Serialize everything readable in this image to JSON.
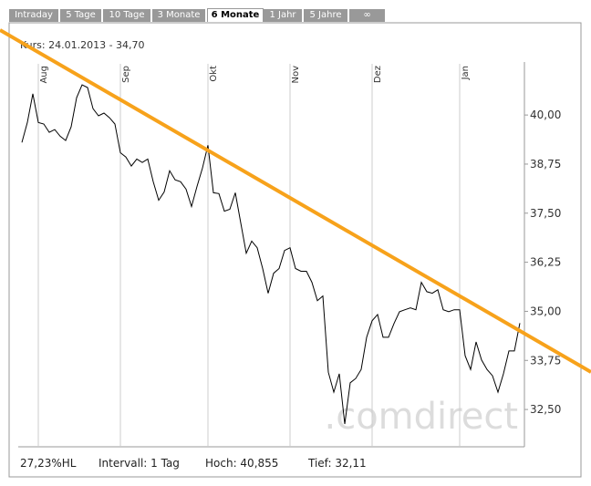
{
  "tabs": [
    "Intraday",
    "5 Tage",
    "10 Tage",
    "3 Monate",
    "6 Monate",
    "1 Jahr",
    "5 Jahre",
    "∞"
  ],
  "active_tab": 4,
  "chart_data": {
    "type": "line",
    "subtitle": "Kurs: 24.01.2013 - 34,70",
    "watermark": ".comdirect",
    "categories": [
      null,
      null,
      null,
      "Aug",
      null,
      null,
      null,
      null,
      null,
      null,
      null,
      null,
      null,
      null,
      null,
      null,
      null,
      null,
      "Sep",
      null,
      null,
      null,
      null,
      null,
      null,
      null,
      null,
      null,
      null,
      null,
      null,
      null,
      null,
      null,
      "Okt",
      null,
      null,
      null,
      null,
      null,
      null,
      null,
      null,
      null,
      null,
      null,
      null,
      null,
      null,
      "Nov",
      null,
      null,
      null,
      null,
      null,
      null,
      null,
      null,
      null,
      null,
      null,
      null,
      null,
      null,
      "Dez",
      null,
      null,
      null,
      null,
      null,
      null,
      null,
      null,
      null,
      null,
      null,
      null,
      null,
      null,
      null,
      "Jan",
      null,
      null,
      null,
      null,
      null,
      null,
      null,
      null,
      null,
      null,
      null
    ],
    "series": [
      {
        "name": "Kurs",
        "color": "#000000",
        "values": [
          39.3,
          39.81,
          40.54,
          39.81,
          39.77,
          39.56,
          39.63,
          39.46,
          39.35,
          39.7,
          40.44,
          40.77,
          40.7,
          40.16,
          39.98,
          40.05,
          39.93,
          39.77,
          39.04,
          38.93,
          38.7,
          38.88,
          38.79,
          38.88,
          38.3,
          37.83,
          38.04,
          38.58,
          38.35,
          38.3,
          38.11,
          37.67,
          38.18,
          38.65,
          39.23,
          38.02,
          38.0,
          37.55,
          37.6,
          38.02,
          37.25,
          36.48,
          36.79,
          36.62,
          36.09,
          35.46,
          35.97,
          36.09,
          36.55,
          36.62,
          36.09,
          36.02,
          36.02,
          35.74,
          35.27,
          35.39,
          33.45,
          32.94,
          33.41,
          32.13,
          33.18,
          33.29,
          33.52,
          34.34,
          34.76,
          34.92,
          34.34,
          34.34,
          34.69,
          34.99,
          35.04,
          35.09,
          35.04,
          35.74,
          35.5,
          35.46,
          35.55,
          35.04,
          34.99,
          35.04,
          35.04,
          33.87,
          33.52,
          34.22,
          33.76,
          33.52,
          33.36,
          32.94,
          33.41,
          33.99,
          33.99,
          34.7
        ]
      }
    ],
    "ylim": [
      31.55,
      41.35
    ],
    "yticks": [
      {
        "value": 40,
        "label": "40,00"
      },
      {
        "value": 38.75,
        "label": "38,75"
      },
      {
        "value": 37.5,
        "label": "37,50"
      },
      {
        "value": 36.25,
        "label": "36,25"
      },
      {
        "value": 35,
        "label": "35,00"
      },
      {
        "value": 33.75,
        "label": "33,75"
      },
      {
        "value": 32.5,
        "label": "32,50"
      }
    ],
    "trend_color": "#f7a21b",
    "footer": [
      "27,23%HL",
      "Intervall: 1 Tag",
      "Hoch: 40,855",
      "Tief: 32,11"
    ]
  }
}
